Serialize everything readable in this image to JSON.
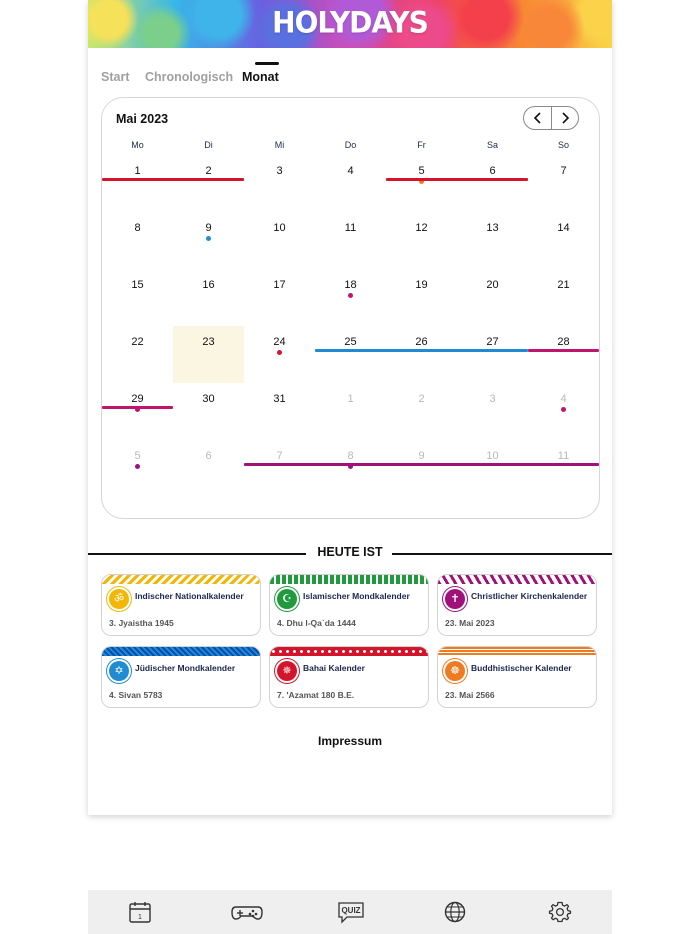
{
  "app": {
    "logo": "HOLYDAYS"
  },
  "tabs": [
    {
      "label": "Start",
      "active": false
    },
    {
      "label": "Chronologisch",
      "active": false
    },
    {
      "label": "Monat",
      "active": true
    }
  ],
  "calendar": {
    "month_label": "Mai 2023",
    "prev_glyph": "‹",
    "next_glyph": "›",
    "weekdays": [
      "Mo",
      "Di",
      "Mi",
      "Do",
      "Fr",
      "Sa",
      "So"
    ],
    "weeks": [
      [
        {
          "d": "1"
        },
        {
          "d": "2"
        },
        {
          "d": "3"
        },
        {
          "d": "4"
        },
        {
          "d": "5",
          "dot": "#f07b22"
        },
        {
          "d": "6"
        },
        {
          "d": "7"
        }
      ],
      [
        {
          "d": "8"
        },
        {
          "d": "9",
          "dot": "#1e8fd6"
        },
        {
          "d": "10"
        },
        {
          "d": "11"
        },
        {
          "d": "12"
        },
        {
          "d": "13"
        },
        {
          "d": "14"
        }
      ],
      [
        {
          "d": "15"
        },
        {
          "d": "16"
        },
        {
          "d": "17"
        },
        {
          "d": "18",
          "dot": "#c0156e"
        },
        {
          "d": "19"
        },
        {
          "d": "20"
        },
        {
          "d": "21"
        }
      ],
      [
        {
          "d": "22"
        },
        {
          "d": "23",
          "today": true
        },
        {
          "d": "24",
          "dot": "#d8152a"
        },
        {
          "d": "25"
        },
        {
          "d": "26"
        },
        {
          "d": "27"
        },
        {
          "d": "28"
        }
      ],
      [
        {
          "d": "29",
          "dot": "#c0156e"
        },
        {
          "d": "30"
        },
        {
          "d": "31"
        },
        {
          "d": "1",
          "out": true
        },
        {
          "d": "2",
          "out": true
        },
        {
          "d": "3",
          "out": true
        },
        {
          "d": "4",
          "out": true,
          "dot": "#c0156e"
        }
      ],
      [
        {
          "d": "5",
          "out": true,
          "dot": "#a0127a"
        },
        {
          "d": "6",
          "out": true
        },
        {
          "d": "7",
          "out": true
        },
        {
          "d": "8",
          "out": true,
          "dot": "#a0127a"
        },
        {
          "d": "9",
          "out": true
        },
        {
          "d": "10",
          "out": true
        },
        {
          "d": "11",
          "out": true
        }
      ]
    ],
    "event_bars": [
      {
        "week": 0,
        "from": 0,
        "to": 1,
        "color": "#d4142a"
      },
      {
        "week": 0,
        "from": 4,
        "to": 5,
        "color": "#d4142a"
      },
      {
        "week": 3,
        "from": 3,
        "to": 5,
        "color": "#1f8bd2"
      },
      {
        "week": 3,
        "from": 6,
        "to": 6,
        "color": "#c0156e"
      },
      {
        "week": 4,
        "from": 0,
        "to": 0,
        "color": "#c0156e"
      },
      {
        "week": 5,
        "from": 2,
        "to": 6,
        "color": "#a0127a"
      }
    ]
  },
  "today_section": {
    "label": "HEUTE IST"
  },
  "cards": [
    {
      "title": "Indischer Nationalkalender",
      "value": "3. Jyaistha 1945",
      "icon": "om-icon",
      "glyph": "ॐ",
      "color": "#f2b705",
      "pattern": "zigzag"
    },
    {
      "title": "Islamischer Mondkalender",
      "value": "4. Dhu l-Qa`da 1444",
      "icon": "crescent-icon",
      "glyph": "☪",
      "color": "#1f9a3c",
      "pattern": "stripes"
    },
    {
      "title": "Christlicher Kirchenkalender",
      "value": "23. Mai 2023",
      "icon": "cross-icon",
      "glyph": "✝",
      "color": "#a0127a",
      "pattern": "chevrons"
    },
    {
      "title": "Jüdischer Mondkalender",
      "value": "4. Sivan 5783",
      "icon": "star-of-david-icon",
      "glyph": "✡",
      "color": "#1f8bd2",
      "pattern": "lattice"
    },
    {
      "title": "Bahai Kalender",
      "value": "7. 'Azamat 180 B.E.",
      "icon": "bahai-star-icon",
      "glyph": "✵",
      "color": "#d4142a",
      "pattern": "dots"
    },
    {
      "title": "Buddhistischer Kalender",
      "value": "23. Mai 2566",
      "icon": "dharma-wheel-icon",
      "glyph": "☸",
      "color": "#ee7b22",
      "pattern": "lines"
    }
  ],
  "footer": {
    "impressum": "Impressum"
  },
  "bottom_nav": [
    {
      "name": "calendar-icon",
      "label": "1"
    },
    {
      "name": "gamepad-icon"
    },
    {
      "name": "quiz-icon",
      "label": "QUIZ"
    },
    {
      "name": "globe-icon"
    },
    {
      "name": "settings-gear-icon"
    }
  ]
}
